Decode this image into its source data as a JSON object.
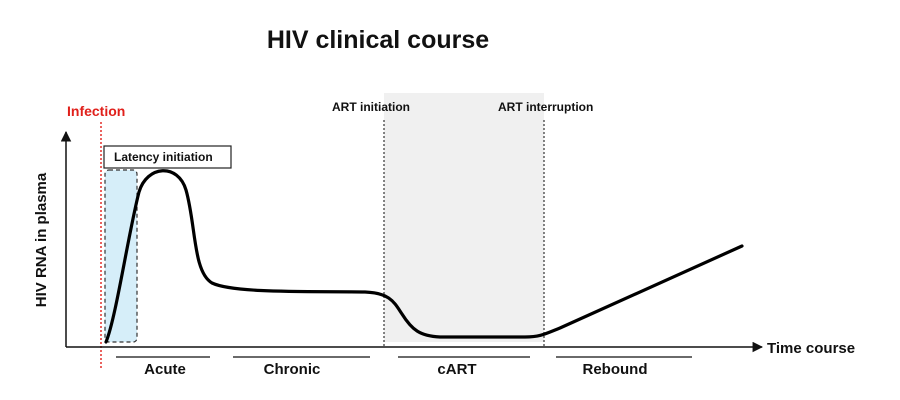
{
  "diagram": {
    "title": "HIV clinical course",
    "events": {
      "infection": "Infection",
      "art_initiation": "ART initiation",
      "art_interruption": "ART interruption"
    },
    "latency_label": "Latency initiation",
    "axes": {
      "y_label": "HIV RNA in plasma",
      "x_label": "Time course"
    },
    "phases": {
      "acute": "Acute",
      "chronic": "Chronic",
      "cart": "cART",
      "rebound": "Rebound"
    },
    "colors": {
      "infection": "#e0201b",
      "latency_fill": "#d6eef9",
      "cart_shade": "#f0f0f0",
      "curve": "#000000"
    }
  }
}
